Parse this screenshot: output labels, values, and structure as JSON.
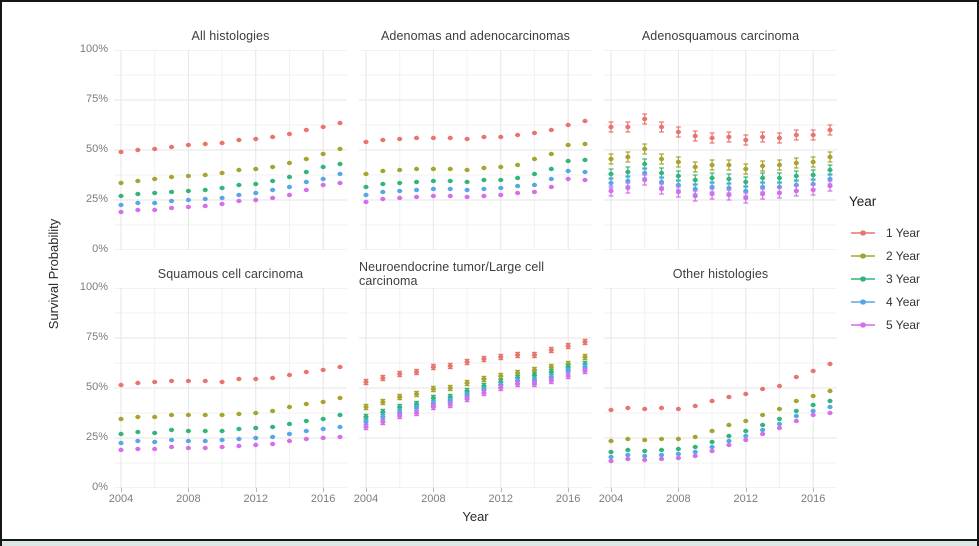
{
  "axes": {
    "x_title": "Year",
    "y_title": "Survival Probability",
    "y_ticks": [
      "100%",
      "75%",
      "50%",
      "25%",
      "0%"
    ],
    "x_ticks": [
      "2004",
      "2008",
      "2012",
      "2016"
    ],
    "x_tick_years": [
      2004,
      2008,
      2012,
      2016
    ]
  },
  "legend": {
    "title": "Year",
    "position": "right",
    "items": [
      {
        "label": "1 Year",
        "color": "#E8756D"
      },
      {
        "label": "2 Year",
        "color": "#A6A42E"
      },
      {
        "label": "3 Year",
        "color": "#33B579"
      },
      {
        "label": "4 Year",
        "color": "#55A7E8"
      },
      {
        "label": "5 Year",
        "color": "#D36FE8"
      }
    ]
  },
  "style": {
    "grid_major_color": "#e6e6e6",
    "grid_minor_color": "#f2f2f2",
    "background": "#ffffff"
  },
  "chart_data": {
    "type": "scatter",
    "title": "",
    "xlabel": "Year",
    "ylabel": "Survival Probability",
    "ylim": [
      0,
      100
    ],
    "x_range": [
      2003.5,
      2017.5
    ],
    "grid": true,
    "x": [
      2004,
      2005,
      2006,
      2007,
      2008,
      2009,
      2010,
      2011,
      2012,
      2013,
      2014,
      2015,
      2016,
      2017
    ],
    "facets": [
      {
        "title": "All histologies",
        "row": 0,
        "col": 0,
        "error_pct": 0,
        "series": [
          {
            "name": "1 Year",
            "values": [
              49,
              50,
              50.5,
              51.5,
              52.5,
              53,
              53.5,
              55,
              55.5,
              56.5,
              58,
              60,
              61.5,
              63.5
            ]
          },
          {
            "name": "2 Year",
            "values": [
              33.5,
              34.5,
              35.5,
              36.5,
              37,
              37.5,
              38.5,
              40,
              40.5,
              41.5,
              43.5,
              45.5,
              48,
              50.5
            ]
          },
          {
            "name": "3 Year",
            "values": [
              27,
              28,
              28.5,
              29,
              29.5,
              30,
              31,
              32.5,
              33,
              34.5,
              36.5,
              39,
              41.5,
              43
            ]
          },
          {
            "name": "4 Year",
            "values": [
              22.5,
              23.5,
              23.5,
              24.5,
              25,
              25.5,
              26,
              27.5,
              28.5,
              30,
              31.5,
              34,
              35.5,
              38
            ]
          },
          {
            "name": "5 Year",
            "values": [
              19,
              20,
              20,
              21,
              21.5,
              22,
              23,
              24.5,
              25,
              26,
              27.5,
              30,
              32.5,
              33.5
            ]
          }
        ]
      },
      {
        "title": "Adenomas and adenocarcinomas",
        "row": 0,
        "col": 1,
        "error_pct": 0.5,
        "series": [
          {
            "name": "1 Year",
            "values": [
              54,
              55,
              55.5,
              56,
              56,
              56,
              55.5,
              56.5,
              56.5,
              57.5,
              58.5,
              60,
              62.5,
              64.5
            ]
          },
          {
            "name": "2 Year",
            "values": [
              38,
              39.5,
              40,
              40.5,
              40.5,
              40.5,
              40,
              41,
              41.5,
              42.5,
              45.5,
              48,
              52.5,
              53
            ]
          },
          {
            "name": "3 Year",
            "values": [
              31.5,
              33,
              33.5,
              34,
              34.5,
              34.5,
              34,
              35,
              35,
              36,
              38,
              40.5,
              44.5,
              45
            ]
          },
          {
            "name": "4 Year",
            "values": [
              27.5,
              29,
              29.5,
              30,
              30.5,
              30.5,
              30,
              30.5,
              31,
              32,
              32.5,
              35.5,
              39.5,
              39
            ]
          },
          {
            "name": "5 Year",
            "values": [
              24,
              25.5,
              26,
              26.5,
              27,
              27,
              26.5,
              27,
              27.5,
              28.5,
              29,
              31.5,
              35.5,
              35
            ]
          }
        ]
      },
      {
        "title": "Adenosquamous carcinoma",
        "row": 0,
        "col": 2,
        "error_pct": 2.5,
        "series": [
          {
            "name": "1 Year",
            "values": [
              61.5,
              61.5,
              65.5,
              61.5,
              59,
              57,
              56,
              56.5,
              55,
              56.5,
              56,
              57.5,
              57.5,
              60
            ]
          },
          {
            "name": "2 Year",
            "values": [
              45.5,
              46.5,
              50.5,
              45.5,
              44,
              41.5,
              42.5,
              42.5,
              40.5,
              42,
              42.5,
              43.5,
              44,
              46.5
            ]
          },
          {
            "name": "3 Year",
            "values": [
              38,
              39,
              43,
              38.5,
              37,
              35,
              36,
              35.5,
              34,
              36,
              36,
              37,
              37.5,
              40
            ]
          },
          {
            "name": "4 Year",
            "values": [
              33.5,
              34.5,
              38.5,
              34,
              32.5,
              30.5,
              31.5,
              31,
              29.5,
              31.5,
              31.5,
              32.5,
              33,
              35.5
            ]
          },
          {
            "name": "5 Year",
            "values": [
              29.5,
              31,
              35,
              30.5,
              29,
              27,
              28,
              27.5,
              26,
              28,
              28.5,
              29.5,
              30,
              32
            ]
          }
        ]
      },
      {
        "title": "Squamous cell carcinoma",
        "row": 1,
        "col": 0,
        "error_pct": 0,
        "series": [
          {
            "name": "1 Year",
            "values": [
              51.5,
              52.5,
              53,
              53.5,
              53.5,
              53.5,
              53,
              54.5,
              54.5,
              55,
              56.5,
              58,
              59,
              60.5
            ]
          },
          {
            "name": "2 Year",
            "values": [
              34.5,
              35.5,
              35.5,
              36.5,
              36.5,
              36.5,
              36.5,
              37,
              37.5,
              38.5,
              40.5,
              42,
              43,
              45
            ]
          },
          {
            "name": "3 Year",
            "values": [
              27,
              28,
              27.5,
              29,
              28.5,
              28.5,
              28.5,
              29.5,
              30,
              30.5,
              32,
              33.5,
              34.5,
              36.5
            ]
          },
          {
            "name": "4 Year",
            "values": [
              22.5,
              23.5,
              23,
              24,
              23.5,
              23.5,
              24,
              24.5,
              25,
              25.5,
              27,
              28.5,
              29.5,
              30.5
            ]
          },
          {
            "name": "5 Year",
            "values": [
              19,
              19.5,
              19.5,
              20.5,
              20,
              20,
              20.5,
              21,
              21.5,
              22,
              23.5,
              24.5,
              25,
              25.5
            ]
          }
        ]
      },
      {
        "title": "Neuroendocrine tumor/Large cell carcinoma",
        "row": 1,
        "col": 1,
        "error_pct": 1.3,
        "series": [
          {
            "name": "1 Year",
            "values": [
              53,
              55,
              57,
              58,
              60.5,
              61,
              63,
              64.5,
              65.5,
              66.5,
              66.5,
              69,
              71,
              73
            ]
          },
          {
            "name": "2 Year",
            "values": [
              40.5,
              43,
              45.5,
              47,
              49.5,
              50,
              52.5,
              54.5,
              56,
              57.5,
              59,
              60.5,
              62,
              65.5
            ]
          },
          {
            "name": "3 Year",
            "values": [
              35.5,
              38,
              40.5,
              42,
              45,
              45.5,
              48.5,
              51,
              53,
              55,
              56.5,
              58,
              60.5,
              62
            ]
          },
          {
            "name": "4 Year",
            "values": [
              33,
              35.5,
              38,
              40,
              42.5,
              43.5,
              46.5,
              49,
              51.5,
              53.5,
              54,
              55.5,
              58.5,
              60.5
            ]
          },
          {
            "name": "5 Year",
            "values": [
              30.5,
              33,
              36,
              37.5,
              40.5,
              41.5,
              44.5,
              47.5,
              50,
              52,
              52,
              53.5,
              56,
              58.5
            ]
          }
        ]
      },
      {
        "title": "Other histologies",
        "row": 1,
        "col": 2,
        "error_pct": 0,
        "series": [
          {
            "name": "1 Year",
            "values": [
              39,
              40,
              39.5,
              40,
              39.5,
              41,
              43.5,
              45.5,
              47,
              49.5,
              51,
              55.5,
              58.5,
              62
            ]
          },
          {
            "name": "2 Year",
            "values": [
              23.5,
              24.5,
              24,
              24.5,
              24.5,
              25.5,
              28.5,
              31.5,
              33.5,
              36.5,
              39.5,
              43.5,
              46,
              48.5
            ]
          },
          {
            "name": "3 Year",
            "values": [
              18,
              19,
              18.5,
              19,
              19.5,
              20.5,
              23,
              26,
              28.5,
              31.5,
              34.5,
              38.5,
              41.5,
              43.5
            ]
          },
          {
            "name": "4 Year",
            "values": [
              15.5,
              16.5,
              16,
              16.5,
              17,
              18,
              20.5,
              23.5,
              26,
              29,
              32,
              36,
              38.5,
              40.5
            ]
          },
          {
            "name": "5 Year",
            "values": [
              13.5,
              14.5,
              14,
              14.5,
              15,
              16,
              18.5,
              21.5,
              24,
              27,
              30,
              33.5,
              36.5,
              37.5
            ]
          }
        ]
      }
    ]
  }
}
